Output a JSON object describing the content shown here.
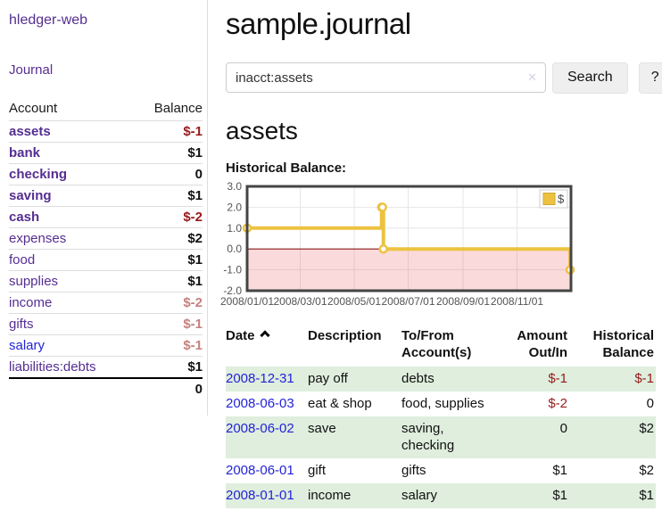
{
  "brand": "hledger-web",
  "nav": {
    "journal": "Journal"
  },
  "sidebar_table": {
    "headers": {
      "account": "Account",
      "balance": "Balance"
    },
    "rows": [
      {
        "name": "assets",
        "balance": "$-1",
        "indent": 1,
        "bold": true,
        "link_style": "purple",
        "balance_style": "negative"
      },
      {
        "name": "bank",
        "balance": "$1",
        "indent": 2,
        "bold": true,
        "link_style": "purple",
        "balance_style": "normal"
      },
      {
        "name": "checking",
        "balance": "0",
        "indent": 3,
        "bold": true,
        "link_style": "purple",
        "balance_style": "normal"
      },
      {
        "name": "saving",
        "balance": "$1",
        "indent": 3,
        "bold": true,
        "link_style": "purple",
        "balance_style": "normal"
      },
      {
        "name": "cash",
        "balance": "$-2",
        "indent": 2,
        "bold": true,
        "link_style": "purple",
        "balance_style": "negative"
      },
      {
        "name": "expenses",
        "balance": "$2",
        "indent": 1,
        "bold": false,
        "link_style": "purple",
        "balance_style": "normal"
      },
      {
        "name": "food",
        "balance": "$1",
        "indent": 2,
        "bold": false,
        "link_style": "purple",
        "balance_style": "normal"
      },
      {
        "name": "supplies",
        "balance": "$1",
        "indent": 2,
        "bold": false,
        "link_style": "purple",
        "balance_style": "normal"
      },
      {
        "name": "income",
        "balance": "$-2",
        "indent": 1,
        "bold": false,
        "link_style": "purple",
        "balance_style": "faded"
      },
      {
        "name": "gifts",
        "balance": "$-1",
        "indent": 2,
        "bold": false,
        "link_style": "purple",
        "balance_style": "faded"
      },
      {
        "name": "salary",
        "balance": "$-1",
        "indent": 2,
        "bold": false,
        "link_style": "blue",
        "balance_style": "faded"
      },
      {
        "name": "liabilities:debts",
        "balance": "$1",
        "indent": 1,
        "bold": false,
        "link_style": "purple",
        "balance_style": "normal"
      }
    ],
    "total": "0"
  },
  "header": {
    "title": "sample.journal"
  },
  "search": {
    "value": "inacct:assets",
    "clear_icon": "✕",
    "button": "Search",
    "help_button": "?"
  },
  "account_page": {
    "heading": "assets",
    "chart_label": "Historical Balance:"
  },
  "chart_data": {
    "type": "line",
    "step": true,
    "title": "Historical Balance:",
    "series": [
      {
        "name": "$",
        "points": [
          [
            "2008-01-01",
            1
          ],
          [
            "2008-06-01",
            2
          ],
          [
            "2008-06-02",
            2
          ],
          [
            "2008-06-03",
            0
          ],
          [
            "2008-12-31",
            -1
          ]
        ]
      }
    ],
    "xlim": [
      "2008-01-01",
      "2009-01-01"
    ],
    "ylim": [
      -2,
      3
    ],
    "x_ticks": [
      "2008/01/01",
      "2008/03/01",
      "2008/05/01",
      "2008/07/01",
      "2008/09/01",
      "2008/11/01"
    ],
    "y_ticks": [
      "3.0",
      "2.0",
      "1.0",
      "0.0",
      "-1.0",
      "-2.0"
    ],
    "legend_position": "top-right",
    "grid": true
  },
  "register_table": {
    "headers": {
      "date": "Date",
      "description": "Description",
      "tofrom": "To/From\nAccount(s)",
      "amount": "Amount\nOut/In",
      "historical": "Historical\nBalance"
    },
    "rows": [
      {
        "date": "2008-12-31",
        "description": "pay off",
        "accounts": "debts",
        "amount": "$-1",
        "amount_negative": true,
        "balance": "$-1",
        "balance_negative": true
      },
      {
        "date": "2008-06-03",
        "description": "eat & shop",
        "accounts": "food, supplies",
        "amount": "$-2",
        "amount_negative": true,
        "balance": "0",
        "balance_negative": false
      },
      {
        "date": "2008-06-02",
        "description": "save",
        "accounts": "saving,\nchecking",
        "amount": "0",
        "amount_negative": false,
        "balance": "$2",
        "balance_negative": false
      },
      {
        "date": "2008-06-01",
        "description": "gift",
        "accounts": "gifts",
        "amount": "$1",
        "amount_negative": false,
        "balance": "$2",
        "balance_negative": false
      },
      {
        "date": "2008-01-01",
        "description": "income",
        "accounts": "salary",
        "amount": "$1",
        "amount_negative": false,
        "balance": "$1",
        "balance_negative": false
      }
    ]
  },
  "colors": {
    "purple": "#552e91",
    "blue": "#2323d8",
    "negative": "#971a1a",
    "faded_negative": "#c5817e",
    "row_green": "#dfeedd",
    "chart_gold": "#edc240",
    "chart_zero": "#8b1a1a",
    "chart_negative_fill": "#e85757",
    "border_gray": "#dddddd"
  }
}
